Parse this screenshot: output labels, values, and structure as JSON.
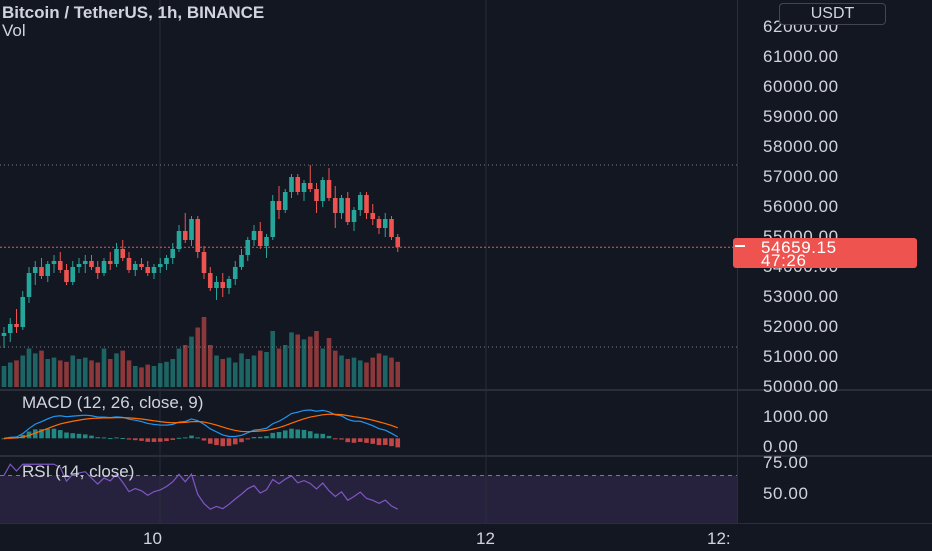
{
  "header": {
    "symbol": "Bitcoin / TetherUS, 1h, BINANCE",
    "volume_label": "Vol"
  },
  "currency": "USDT",
  "price_axis": {
    "ticks": [
      "62000.00",
      "61000.00",
      "60000.00",
      "59000.00",
      "58000.00",
      "57000.00",
      "56000.00",
      "55000.00",
      "54000.00",
      "53000.00",
      "52000.00",
      "51000.00",
      "50000.00"
    ]
  },
  "last_price": {
    "value": "54659.15",
    "countdown": "47:26"
  },
  "macd": {
    "label": "MACD (12, 26, close, 9)",
    "ticks": [
      "1000.00",
      "0.00"
    ]
  },
  "rsi": {
    "label": "RSI (14, close)",
    "ticks": [
      "75.00",
      "50.00"
    ]
  },
  "time_axis": {
    "labels": [
      "10",
      "12",
      "12:"
    ]
  },
  "colors": {
    "background": "#131722",
    "up": "#26a69a",
    "down": "#ef5350",
    "macd_line": "#2196f3",
    "signal_line": "#ff6d00",
    "rsi_line": "#7e57c2",
    "rsi_band": "#7e57c2"
  },
  "chart_data": {
    "type": "candlestick",
    "ohlc": [
      [
        51700,
        52000,
        51300,
        51800
      ],
      [
        51800,
        52300,
        51500,
        52100
      ],
      [
        52100,
        52600,
        51800,
        52000
      ],
      [
        52000,
        53200,
        51900,
        53000
      ],
      [
        53000,
        54000,
        52800,
        53800
      ],
      [
        53800,
        54200,
        53400,
        54000
      ],
      [
        54000,
        54300,
        53600,
        53700
      ],
      [
        53700,
        54200,
        53500,
        54100
      ],
      [
        54100,
        54400,
        53800,
        54200
      ],
      [
        54200,
        54500,
        53800,
        53900
      ],
      [
        53900,
        54100,
        53400,
        53500
      ],
      [
        53500,
        54200,
        53400,
        54000
      ],
      [
        54000,
        54300,
        53800,
        54100
      ],
      [
        54100,
        54400,
        53800,
        54200
      ],
      [
        54200,
        54400,
        53900,
        54000
      ],
      [
        54000,
        54200,
        53600,
        53800
      ],
      [
        53800,
        54300,
        53700,
        54200
      ],
      [
        54200,
        54500,
        53900,
        54100
      ],
      [
        54100,
        54800,
        54000,
        54600
      ],
      [
        54600,
        54900,
        54200,
        54300
      ],
      [
        54300,
        54500,
        53800,
        53900
      ],
      [
        53900,
        54200,
        53700,
        54100
      ],
      [
        54100,
        54300,
        53900,
        54000
      ],
      [
        54000,
        54200,
        53700,
        53800
      ],
      [
        53800,
        54100,
        53600,
        54000
      ],
      [
        54000,
        54300,
        53800,
        54100
      ],
      [
        54100,
        54400,
        53900,
        54300
      ],
      [
        54300,
        54800,
        54100,
        54600
      ],
      [
        54600,
        55400,
        54500,
        55200
      ],
      [
        55200,
        55800,
        54800,
        54900
      ],
      [
        54900,
        55700,
        54700,
        55600
      ],
      [
        55600,
        55700,
        54300,
        54500
      ],
      [
        54500,
        54700,
        53600,
        53800
      ],
      [
        53800,
        54000,
        53200,
        53300
      ],
      [
        53300,
        53700,
        52900,
        53500
      ],
      [
        53500,
        53800,
        53000,
        53300
      ],
      [
        53300,
        53700,
        53100,
        53600
      ],
      [
        53600,
        54200,
        53400,
        54000
      ],
      [
        54000,
        54600,
        53900,
        54400
      ],
      [
        54400,
        55000,
        54200,
        54900
      ],
      [
        54900,
        55400,
        54700,
        55200
      ],
      [
        55200,
        55500,
        54600,
        54700
      ],
      [
        54700,
        55100,
        54300,
        55000
      ],
      [
        55000,
        56400,
        54900,
        56200
      ],
      [
        56200,
        56700,
        55600,
        55900
      ],
      [
        55900,
        56600,
        55800,
        56500
      ],
      [
        56500,
        57100,
        56300,
        57000
      ],
      [
        57000,
        57100,
        56400,
        56500
      ],
      [
        56500,
        56900,
        56200,
        56800
      ],
      [
        56800,
        57400,
        56500,
        56600
      ],
      [
        56600,
        56800,
        55800,
        56200
      ],
      [
        56200,
        57000,
        56000,
        56900
      ],
      [
        56900,
        57300,
        56200,
        56300
      ],
      [
        56300,
        56700,
        55300,
        55800
      ],
      [
        55800,
        56400,
        55600,
        56300
      ],
      [
        56300,
        56500,
        55400,
        55500
      ],
      [
        55500,
        56000,
        55200,
        55900
      ],
      [
        55900,
        56500,
        55700,
        56400
      ],
      [
        56400,
        56500,
        55600,
        55800
      ],
      [
        55800,
        56100,
        55400,
        55600
      ],
      [
        55600,
        55700,
        55100,
        55300
      ],
      [
        55300,
        55800,
        55000,
        55600
      ],
      [
        55600,
        55700,
        54900,
        55000
      ],
      [
        55000,
        55100,
        54500,
        54659
      ]
    ],
    "volume": [
      0.3,
      0.35,
      0.38,
      0.45,
      0.55,
      0.48,
      0.52,
      0.4,
      0.42,
      0.38,
      0.36,
      0.45,
      0.4,
      0.42,
      0.38,
      0.35,
      0.55,
      0.4,
      0.48,
      0.52,
      0.38,
      0.3,
      0.28,
      0.32,
      0.3,
      0.34,
      0.36,
      0.4,
      0.55,
      0.6,
      0.72,
      0.85,
      1.0,
      0.6,
      0.45,
      0.4,
      0.42,
      0.35,
      0.48,
      0.4,
      0.45,
      0.52,
      0.5,
      0.8,
      0.55,
      0.6,
      0.78,
      0.75,
      0.68,
      0.72,
      0.8,
      0.55,
      0.7,
      0.52,
      0.45,
      0.4,
      0.42,
      0.38,
      0.35,
      0.42,
      0.48,
      0.45,
      0.42,
      0.36
    ],
    "macd_range": [
      -200,
      1100
    ],
    "rsi_range": [
      35,
      80
    ]
  }
}
